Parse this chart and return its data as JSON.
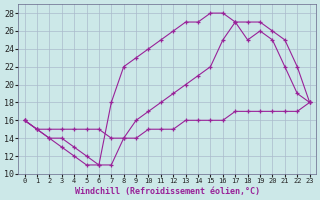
{
  "xlabel": "Windchill (Refroidissement éolien,°C)",
  "bg_color": "#cce8e8",
  "grid_color": "#aabbcc",
  "line_color": "#992299",
  "xlim": [
    -0.5,
    23.5
  ],
  "ylim": [
    10,
    29
  ],
  "xticks": [
    0,
    1,
    2,
    3,
    4,
    5,
    6,
    7,
    8,
    9,
    10,
    11,
    12,
    13,
    14,
    15,
    16,
    17,
    18,
    19,
    20,
    21,
    22,
    23
  ],
  "yticks": [
    10,
    12,
    14,
    16,
    18,
    20,
    22,
    24,
    26,
    28
  ],
  "series": [
    {
      "x": [
        0,
        1,
        2,
        3,
        4,
        5,
        6,
        7,
        8,
        9,
        10,
        11,
        12,
        13,
        14,
        15,
        16,
        17,
        18,
        19,
        20,
        21,
        22,
        23
      ],
      "y": [
        16,
        15,
        14,
        13,
        12,
        11,
        11,
        18,
        22,
        23,
        24,
        25,
        26,
        27,
        27,
        28,
        28,
        27,
        25,
        26,
        25,
        22,
        19,
        18
      ]
    },
    {
      "x": [
        0,
        1,
        2,
        3,
        4,
        5,
        6,
        7,
        8,
        9,
        10,
        11,
        12,
        13,
        14,
        15,
        16,
        17,
        18,
        19,
        20,
        21,
        22,
        23
      ],
      "y": [
        16,
        15,
        14,
        14,
        13,
        12,
        11,
        11,
        14,
        16,
        17,
        18,
        19,
        20,
        21,
        22,
        25,
        27,
        27,
        27,
        26,
        25,
        22,
        18
      ]
    },
    {
      "x": [
        0,
        1,
        2,
        3,
        4,
        5,
        6,
        7,
        8,
        9,
        10,
        11,
        12,
        13,
        14,
        15,
        16,
        17,
        18,
        19,
        20,
        21,
        22,
        23
      ],
      "y": [
        16,
        15,
        15,
        15,
        15,
        15,
        15,
        14,
        14,
        14,
        15,
        15,
        15,
        16,
        16,
        16,
        16,
        17,
        17,
        17,
        17,
        17,
        17,
        18
      ]
    }
  ]
}
